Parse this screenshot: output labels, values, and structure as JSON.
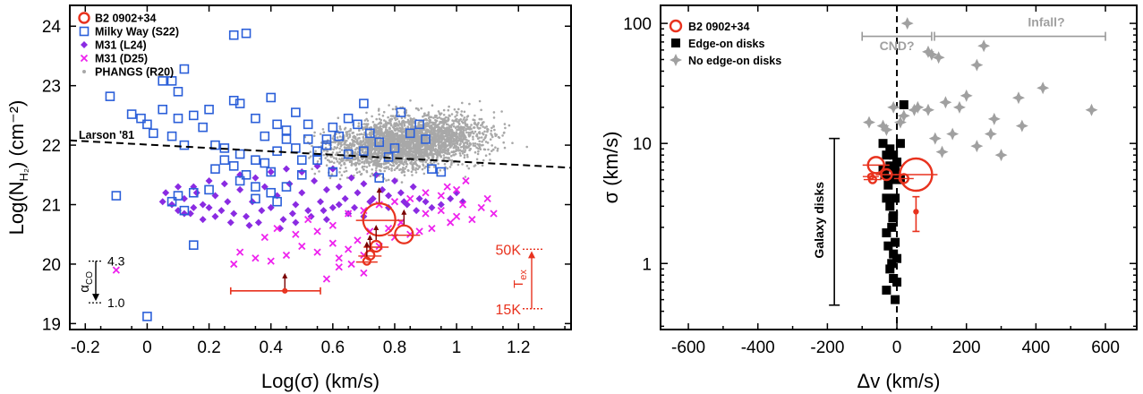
{
  "chart_data": [
    {
      "type": "scatter",
      "id": "left",
      "xlabel": "Log(σ) (km/s)",
      "ylabel": "Log(N",
      "ylabel_sub": "H₂",
      "ylabel_tail": ") (cm⁻²)",
      "xlim": [
        -0.25,
        1.37
      ],
      "ylim": [
        18.9,
        24.35
      ],
      "xticks": [
        -0.2,
        0,
        0.2,
        0.4,
        0.6,
        0.8,
        1,
        1.2
      ],
      "xtick_labels": [
        "-0.2",
        "0",
        "0.2",
        "0.4",
        "0.6",
        "0.8",
        "1",
        "1.2"
      ],
      "yticks": [
        19,
        20,
        21,
        22,
        23,
        24
      ],
      "ytick_labels": [
        "19",
        "20",
        "21",
        "22",
        "23",
        "24"
      ],
      "legend": [
        {
          "label": "B2 0902+34",
          "marker": "circle-open",
          "color": "#e8321e"
        },
        {
          "label": "Milky Way (S22)",
          "marker": "square-open",
          "color": "#2b5fd9"
        },
        {
          "label": "M31 (L24)",
          "marker": "diamond",
          "color": "#8a2be2"
        },
        {
          "label": "M31 (D25)",
          "marker": "x",
          "color": "#ee22ee"
        },
        {
          "label": "PHANGS (R20)",
          "marker": "dot",
          "color": "#a8a8a8"
        }
      ],
      "larson": {
        "label": "Larson '81",
        "x": [
          -0.25,
          1.37
        ],
        "y": [
          22.08,
          21.62
        ]
      },
      "milky_way": [
        [
          -0.12,
          22.82
        ],
        [
          -0.05,
          22.52
        ],
        [
          -0.02,
          22.45
        ],
        [
          0.0,
          22.35
        ],
        [
          0.02,
          22.2
        ],
        [
          0.05,
          23.08
        ],
        [
          0.08,
          23.08
        ],
        [
          0.1,
          22.9
        ],
        [
          0.12,
          23.28
        ],
        [
          0.05,
          22.6
        ],
        [
          0.08,
          22.15
        ],
        [
          0.1,
          22.45
        ],
        [
          0.12,
          22.0
        ],
        [
          0.15,
          22.5
        ],
        [
          0.18,
          22.3
        ],
        [
          0.2,
          22.6
        ],
        [
          0.22,
          22.0
        ],
        [
          0.25,
          21.75
        ],
        [
          0.28,
          23.85
        ],
        [
          0.32,
          23.88
        ],
        [
          0.28,
          22.75
        ],
        [
          0.3,
          22.7
        ],
        [
          0.35,
          22.45
        ],
        [
          0.38,
          22.15
        ],
        [
          0.4,
          22.8
        ],
        [
          0.42,
          22.35
        ],
        [
          0.45,
          22.1
        ],
        [
          0.25,
          21.95
        ],
        [
          0.28,
          21.65
        ],
        [
          0.3,
          21.85
        ],
        [
          0.32,
          21.5
        ],
        [
          0.35,
          21.3
        ],
        [
          0.38,
          21.7
        ],
        [
          0.4,
          21.55
        ],
        [
          0.42,
          21.9
        ],
        [
          0.45,
          22.25
        ],
        [
          0.48,
          21.95
        ],
        [
          0.5,
          21.75
        ],
        [
          0.52,
          22.1
        ],
        [
          0.55,
          21.9
        ],
        [
          0.58,
          22.0
        ],
        [
          0.6,
          22.3
        ],
        [
          0.62,
          22.15
        ],
        [
          0.65,
          22.45
        ],
        [
          0.68,
          22.35
        ],
        [
          0.7,
          22.7
        ],
        [
          0.72,
          22.2
        ],
        [
          0.75,
          21.45
        ],
        [
          0.78,
          21.8
        ],
        [
          0.8,
          21.95
        ],
        [
          0.82,
          22.55
        ],
        [
          0.85,
          22.2
        ],
        [
          0.88,
          22.35
        ],
        [
          0.9,
          22.1
        ],
        [
          0.92,
          21.6
        ],
        [
          0.95,
          21.55
        ],
        [
          0.22,
          21.6
        ],
        [
          0.2,
          21.25
        ],
        [
          0.15,
          21.2
        ],
        [
          0.12,
          20.9
        ],
        [
          0.1,
          21.15
        ],
        [
          0.08,
          21.05
        ],
        [
          -0.1,
          21.15
        ],
        [
          0.15,
          20.32
        ],
        [
          0.0,
          19.12
        ],
        [
          0.35,
          21.1
        ],
        [
          0.4,
          21.2
        ],
        [
          0.45,
          21.3
        ],
        [
          0.5,
          21.5
        ],
        [
          0.55,
          21.75
        ],
        [
          0.6,
          21.55
        ],
        [
          0.65,
          21.85
        ],
        [
          0.7,
          21.9
        ],
        [
          0.75,
          22.05
        ],
        [
          0.48,
          22.55
        ],
        [
          0.52,
          22.35
        ],
        [
          0.58,
          22.1
        ],
        [
          0.35,
          21.75
        ],
        [
          0.42,
          21.05
        ],
        [
          0.3,
          21.4
        ]
      ],
      "m31_l24": [
        [
          0.06,
          21.2
        ],
        [
          0.08,
          21.0
        ],
        [
          0.1,
          20.9
        ],
        [
          0.12,
          21.1
        ],
        [
          0.14,
          20.85
        ],
        [
          0.16,
          21.2
        ],
        [
          0.18,
          21.0
        ],
        [
          0.2,
          20.95
        ],
        [
          0.22,
          21.15
        ],
        [
          0.24,
          20.9
        ],
        [
          0.26,
          21.05
        ],
        [
          0.28,
          20.85
        ],
        [
          0.3,
          21.25
        ],
        [
          0.32,
          20.8
        ],
        [
          0.34,
          21.05
        ],
        [
          0.36,
          20.7
        ],
        [
          0.38,
          21.3
        ],
        [
          0.4,
          20.95
        ],
        [
          0.42,
          21.15
        ],
        [
          0.44,
          20.75
        ],
        [
          0.46,
          21.35
        ],
        [
          0.48,
          21.0
        ],
        [
          0.5,
          21.2
        ],
        [
          0.52,
          20.9
        ],
        [
          0.54,
          21.4
        ],
        [
          0.56,
          21.05
        ],
        [
          0.58,
          21.25
        ],
        [
          0.6,
          20.95
        ],
        [
          0.62,
          21.3
        ],
        [
          0.64,
          21.1
        ],
        [
          0.66,
          21.45
        ],
        [
          0.68,
          21.2
        ],
        [
          0.7,
          21.35
        ],
        [
          0.72,
          21.05
        ],
        [
          0.74,
          21.5
        ],
        [
          0.76,
          21.25
        ],
        [
          0.78,
          21.15
        ],
        [
          0.8,
          21.4
        ],
        [
          0.82,
          21.2
        ],
        [
          0.84,
          21.0
        ],
        [
          0.86,
          21.3
        ],
        [
          0.88,
          21.1
        ],
        [
          0.9,
          21.05
        ],
        [
          0.92,
          20.95
        ],
        [
          0.15,
          21.3
        ],
        [
          0.2,
          21.4
        ],
        [
          0.25,
          21.35
        ],
        [
          0.3,
          21.5
        ],
        [
          0.35,
          21.45
        ],
        [
          0.4,
          21.55
        ],
        [
          0.45,
          21.6
        ],
        [
          0.5,
          21.55
        ],
        [
          0.55,
          21.65
        ],
        [
          0.6,
          21.6
        ],
        [
          0.27,
          20.7
        ],
        [
          0.33,
          20.65
        ],
        [
          0.43,
          20.6
        ],
        [
          0.48,
          20.7
        ],
        [
          0.53,
          20.8
        ],
        [
          0.58,
          20.75
        ],
        [
          0.65,
          20.85
        ],
        [
          0.7,
          20.8
        ],
        [
          0.1,
          21.3
        ],
        [
          0.05,
          21.05
        ],
        [
          0.18,
          20.75
        ],
        [
          0.22,
          20.8
        ],
        [
          0.37,
          20.9
        ],
        [
          0.47,
          20.85
        ],
        [
          0.57,
          20.9
        ],
        [
          0.62,
          21.0
        ],
        [
          0.67,
          20.95
        ],
        [
          0.73,
          21.1
        ],
        [
          0.78,
          20.95
        ],
        [
          0.83,
          21.05
        ],
        [
          0.87,
          20.9
        ],
        [
          0.95,
          21.0
        ],
        [
          0.98,
          21.1
        ],
        [
          1.0,
          21.2
        ],
        [
          1.02,
          21.05
        ],
        [
          0.15,
          20.95
        ],
        [
          0.12,
          20.85
        ]
      ],
      "m31_d25": [
        [
          -0.1,
          19.9
        ],
        [
          0.28,
          20.0
        ],
        [
          0.3,
          20.2
        ],
        [
          0.35,
          20.1
        ],
        [
          0.4,
          20.05
        ],
        [
          0.45,
          20.15
        ],
        [
          0.5,
          20.3
        ],
        [
          0.55,
          20.2
        ],
        [
          0.6,
          20.35
        ],
        [
          0.62,
          20.1
        ],
        [
          0.65,
          20.25
        ],
        [
          0.68,
          20.4
        ],
        [
          0.7,
          20.15
        ],
        [
          0.72,
          20.55
        ],
        [
          0.75,
          20.3
        ],
        [
          0.78,
          20.6
        ],
        [
          0.8,
          20.45
        ],
        [
          0.82,
          20.7
        ],
        [
          0.85,
          20.5
        ],
        [
          0.88,
          20.55
        ],
        [
          0.9,
          20.85
        ],
        [
          0.92,
          20.6
        ],
        [
          0.95,
          20.9
        ],
        [
          0.98,
          20.7
        ],
        [
          1.0,
          20.8
        ],
        [
          1.02,
          21.0
        ],
        [
          1.05,
          20.75
        ],
        [
          1.08,
          20.95
        ],
        [
          1.1,
          21.1
        ],
        [
          1.12,
          20.85
        ],
        [
          0.58,
          19.75
        ],
        [
          0.62,
          19.95
        ],
        [
          0.66,
          20.0
        ],
        [
          0.7,
          19.85
        ],
        [
          0.55,
          20.55
        ],
        [
          0.6,
          20.65
        ],
        [
          0.65,
          20.85
        ],
        [
          0.7,
          20.9
        ],
        [
          0.75,
          21.0
        ],
        [
          0.8,
          21.05
        ],
        [
          0.85,
          21.1
        ],
        [
          0.9,
          21.2
        ],
        [
          0.38,
          20.45
        ],
        [
          0.42,
          20.6
        ],
        [
          0.48,
          20.5
        ],
        [
          0.52,
          20.75
        ],
        [
          0.95,
          21.15
        ],
        [
          0.97,
          21.3
        ],
        [
          1.0,
          21.25
        ],
        [
          1.03,
          21.4
        ]
      ],
      "b2_points": [
        {
          "x": 0.75,
          "y": 20.75,
          "s": 18,
          "lim": true
        },
        {
          "x": 0.83,
          "y": 20.5,
          "s": 10,
          "lim": true
        },
        {
          "x": 0.74,
          "y": 20.3,
          "s": 6,
          "lim": true
        },
        {
          "x": 0.72,
          "y": 20.15,
          "s": 5,
          "lim": true
        },
        {
          "x": 0.71,
          "y": 20.05,
          "s": 4,
          "lim": true
        },
        {
          "x": 0.445,
          "y": 19.55,
          "s": 2,
          "lim": true,
          "xerr": [
            0.27,
            0.56
          ]
        }
      ],
      "tex_bar": {
        "top_label": "50K",
        "bottom_label": "15K",
        "axis_label": "T",
        "axis_sub": "ex",
        "y_top": 20.25,
        "y_bottom": 19.25
      },
      "alpha_bar": {
        "top_label": "4.3",
        "bottom_label": "1.0",
        "axis_label": "α",
        "axis_sub": "CO",
        "y_top": 20.05,
        "y_bottom": 19.35
      }
    },
    {
      "type": "scatter",
      "id": "right",
      "xlabel": "Δv (km/s)",
      "ylabel": "σ (km/s)",
      "xlim": [
        -680,
        690
      ],
      "ylog": true,
      "ylim_log": [
        -0.55,
        2.15
      ],
      "xticks": [
        -600,
        -400,
        -200,
        0,
        200,
        400,
        600
      ],
      "xtick_labels": [
        "-600",
        "-400",
        "-200",
        "0",
        "200",
        "400",
        "600"
      ],
      "yticks": [
        1,
        10,
        100
      ],
      "ytick_labels": [
        "1",
        "10",
        "100"
      ],
      "legend": [
        {
          "label": "B2 0902+34",
          "marker": "circle-open",
          "color": "#e8321e"
        },
        {
          "label": "Edge-on disks",
          "marker": "square",
          "color": "#000000"
        },
        {
          "label": "No edge-on disks",
          "marker": "star4",
          "color": "#a0a0a0"
        }
      ],
      "annotations": {
        "cnd": "CND?",
        "infall": "Infall?",
        "galaxy_disks": "Galaxy disks"
      },
      "cnd_range": [
        -100,
        100
      ],
      "infall_range": [
        100,
        600
      ],
      "galaxy_bar": {
        "x": -180,
        "y_low": 0.45,
        "y_high": 11
      },
      "edge_on": [
        [
          -40,
          10
        ],
        [
          -20,
          9
        ],
        [
          20,
          21
        ],
        [
          -30,
          8
        ],
        [
          10,
          10
        ],
        [
          -10,
          8
        ],
        [
          0,
          7
        ],
        [
          -20,
          6.5
        ],
        [
          -5,
          6
        ],
        [
          -15,
          5
        ],
        [
          -25,
          4.5
        ],
        [
          -30,
          3.5
        ],
        [
          -5,
          3.5
        ],
        [
          -20,
          3
        ],
        [
          -10,
          2.5
        ],
        [
          -15,
          2.0
        ],
        [
          -30,
          1.8
        ],
        [
          -5,
          1.5
        ],
        [
          -25,
          1.4
        ],
        [
          -10,
          1.2
        ],
        [
          0,
          1.1
        ],
        [
          -15,
          1.0
        ],
        [
          -20,
          0.9
        ],
        [
          -10,
          0.75
        ],
        [
          -30,
          0.6
        ],
        [
          0,
          0.7
        ],
        [
          -5,
          0.5
        ],
        [
          -35,
          5.5
        ],
        [
          -40,
          6.0
        ],
        [
          10,
          5.0
        ],
        [
          -12,
          2.4
        ]
      ],
      "no_edge_on": [
        [
          30,
          100
        ],
        [
          90,
          58
        ],
        [
          100,
          55
        ],
        [
          120,
          52
        ],
        [
          250,
          65
        ],
        [
          230,
          45
        ],
        [
          200,
          25
        ],
        [
          140,
          22
        ],
        [
          60,
          20
        ],
        [
          180,
          20
        ],
        [
          350,
          24
        ],
        [
          420,
          29
        ],
        [
          560,
          19
        ],
        [
          280,
          16
        ],
        [
          360,
          14
        ],
        [
          -80,
          15
        ],
        [
          -30,
          13
        ],
        [
          10,
          15
        ],
        [
          270,
          12
        ],
        [
          160,
          12
        ],
        [
          50,
          19
        ],
        [
          -40,
          14
        ],
        [
          90,
          19
        ],
        [
          110,
          11
        ],
        [
          230,
          9.5
        ],
        [
          130,
          8.5
        ],
        [
          300,
          8
        ],
        [
          -10,
          20
        ],
        [
          20,
          17
        ]
      ],
      "b2_points": [
        {
          "x": 55,
          "y": 5.5,
          "s": 18
        },
        {
          "x": -60,
          "y": 6.6,
          "s": 9
        },
        {
          "x": -30,
          "y": 5.5,
          "s": 6
        },
        {
          "x": -70,
          "y": 5.0,
          "s": 4
        },
        {
          "x": 20,
          "y": 5.1,
          "s": 5
        },
        {
          "x": -75,
          "y": 5.3,
          "s": 3
        },
        {
          "x": 55,
          "y": 2.7,
          "s": 2,
          "yerr": [
            1.85,
            3.6
          ]
        }
      ]
    }
  ]
}
